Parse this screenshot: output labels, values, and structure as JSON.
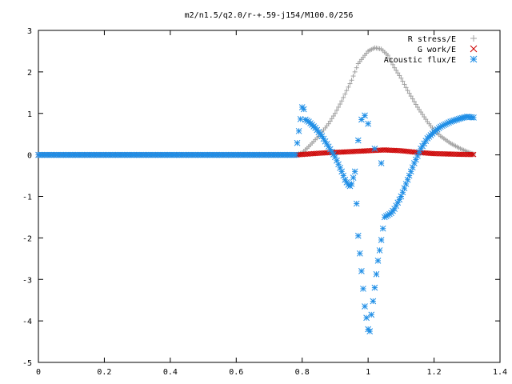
{
  "chart_data": {
    "type": "scatter",
    "title": "m2/n1.5/q2.0/r-+.59-j154/M100.0/256",
    "xlabel": "",
    "ylabel": "",
    "xlim": [
      0,
      1.4
    ],
    "ylim": [
      -5,
      3
    ],
    "x_ticks": [
      0,
      0.2,
      0.4,
      0.6,
      0.8,
      1,
      1.2,
      1.4
    ],
    "x_tick_labels": [
      "0",
      "0.2",
      "0.4",
      "0.6",
      "0.8",
      "1",
      "1.2",
      "1.4"
    ],
    "y_ticks": [
      -5,
      -4,
      -3,
      -2,
      -1,
      0,
      1,
      2,
      3
    ],
    "y_tick_labels": [
      "-5",
      "-4",
      "-3",
      "-2",
      "-1",
      "0",
      "1",
      "2",
      "3"
    ],
    "grid": false,
    "legend_position": "top-right",
    "series": [
      {
        "name": "R stress/E",
        "marker": "plus",
        "color": "#a0a0a0",
        "x": [
          0,
          0.1,
          0.2,
          0.3,
          0.4,
          0.5,
          0.6,
          0.7,
          0.78,
          0.8,
          0.82,
          0.85,
          0.88,
          0.9,
          0.92,
          0.95,
          0.97,
          1.0,
          1.02,
          1.04,
          1.06,
          1.08,
          1.1,
          1.12,
          1.15,
          1.18,
          1.2,
          1.22,
          1.25,
          1.28,
          1.3,
          1.32
        ],
        "y": [
          0,
          0,
          0,
          0,
          0,
          0,
          0,
          0,
          0,
          0.05,
          0.2,
          0.45,
          0.75,
          1.0,
          1.3,
          1.8,
          2.2,
          2.5,
          2.58,
          2.55,
          2.4,
          2.1,
          1.85,
          1.55,
          1.15,
          0.8,
          0.6,
          0.45,
          0.28,
          0.15,
          0.08,
          0.02
        ]
      },
      {
        "name": "G work/E",
        "marker": "cross",
        "color": "#cc0000",
        "x": [
          0,
          0.1,
          0.2,
          0.3,
          0.4,
          0.5,
          0.6,
          0.7,
          0.78,
          0.8,
          0.85,
          0.9,
          0.95,
          1.0,
          1.05,
          1.1,
          1.15,
          1.2,
          1.25,
          1.3,
          1.32
        ],
        "y": [
          0,
          0,
          0,
          0,
          0,
          0,
          0,
          0,
          0,
          0.01,
          0.04,
          0.06,
          0.08,
          0.1,
          0.12,
          0.1,
          0.06,
          0.03,
          0.02,
          0.01,
          0.01
        ]
      },
      {
        "name": "Acoustic flux/E",
        "marker": "star",
        "color": "#1f8ee6",
        "x": [
          0,
          0.1,
          0.2,
          0.3,
          0.4,
          0.5,
          0.6,
          0.7,
          0.78,
          0.8,
          0.805,
          0.81,
          0.82,
          0.84,
          0.86,
          0.88,
          0.9,
          0.92,
          0.93,
          0.94,
          0.945,
          0.95,
          0.955,
          0.96,
          0.97,
          0.98,
          0.99,
          1.0,
          1.005,
          1.01,
          1.02,
          1.03,
          1.04,
          1.05,
          1.06,
          1.07,
          1.08,
          1.1,
          1.12,
          1.14,
          1.16,
          1.18,
          1.2,
          1.22,
          1.25,
          1.28,
          1.3,
          1.32,
          0.97,
          0.98,
          0.99,
          1.0,
          1.02,
          1.04
        ],
        "y": [
          0,
          0,
          0,
          0,
          0,
          0,
          0,
          0,
          0,
          1.15,
          1.1,
          0.85,
          0.8,
          0.65,
          0.45,
          0.2,
          -0.05,
          -0.4,
          -0.6,
          -0.72,
          -0.75,
          -0.7,
          -0.55,
          -0.4,
          -1.95,
          -2.8,
          -3.65,
          -4.2,
          -4.25,
          -3.85,
          -3.2,
          -2.55,
          -2.05,
          -1.5,
          -1.45,
          -1.4,
          -1.3,
          -1.0,
          -0.6,
          -0.2,
          0.15,
          0.4,
          0.55,
          0.68,
          0.8,
          0.88,
          0.92,
          0.9,
          0.35,
          0.85,
          0.95,
          0.75,
          0.15,
          -0.2
        ]
      }
    ]
  }
}
